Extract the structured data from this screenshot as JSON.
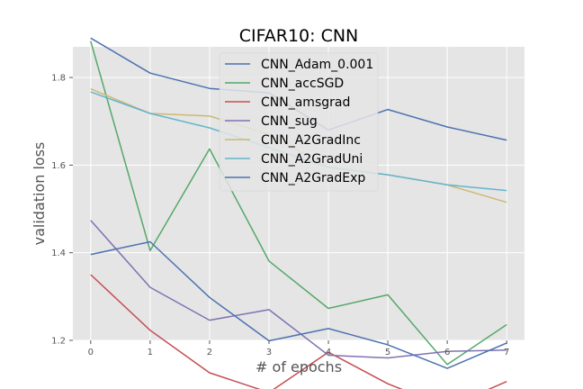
{
  "chart_data": {
    "type": "line",
    "title": "CIFAR10: CNN",
    "xlabel": "# of epochs",
    "ylabel": "validation loss",
    "x": [
      0,
      1,
      2,
      3,
      4,
      5,
      6,
      7
    ],
    "xlim": [
      -0.3,
      7.3
    ],
    "ylim": [
      1.2,
      1.87
    ],
    "xticks": [
      "0",
      "1",
      "2",
      "3",
      "4",
      "5",
      "6",
      "7"
    ],
    "yticks": [
      "1.2",
      "1.4",
      "1.6",
      "1.8"
    ],
    "grid": true,
    "legend_position": "top-center",
    "series": [
      {
        "name": "CNN_Adam_0.001",
        "color": "#4c72b0",
        "values": [
          1.89,
          1.81,
          1.775,
          1.765,
          1.68,
          1.727,
          1.687,
          1.657
        ]
      },
      {
        "name": "CNN_accSGD",
        "color": "#55a868",
        "values": [
          1.883,
          1.405,
          1.637,
          1.381,
          1.273,
          1.304,
          1.145,
          1.236
        ]
      },
      {
        "name": "CNN_amsgrad",
        "color": "#c44e52",
        "values": [
          1.35,
          1.223,
          1.126,
          1.081,
          1.173,
          1.101,
          1.047,
          1.106
        ]
      },
      {
        "name": "CNN_sug",
        "color": "#8172b2",
        "values": [
          1.474,
          1.321,
          1.246,
          1.27,
          1.166,
          1.16,
          1.175,
          1.178
        ]
      },
      {
        "name": "CNN_A2GradInc",
        "color": "#ccb974",
        "values": [
          1.774,
          1.718,
          1.712,
          1.67,
          1.595,
          1.578,
          1.555,
          1.515
        ]
      },
      {
        "name": "CNN_A2GradUni",
        "color": "#64b5cd",
        "values": [
          1.767,
          1.718,
          1.685,
          1.64,
          1.595,
          1.578,
          1.555,
          1.542
        ]
      },
      {
        "name": "CNN_A2GradExp",
        "color": "#4c72b0",
        "values": [
          1.396,
          1.425,
          1.298,
          1.199,
          1.227,
          1.19,
          1.136,
          1.194
        ]
      }
    ]
  }
}
